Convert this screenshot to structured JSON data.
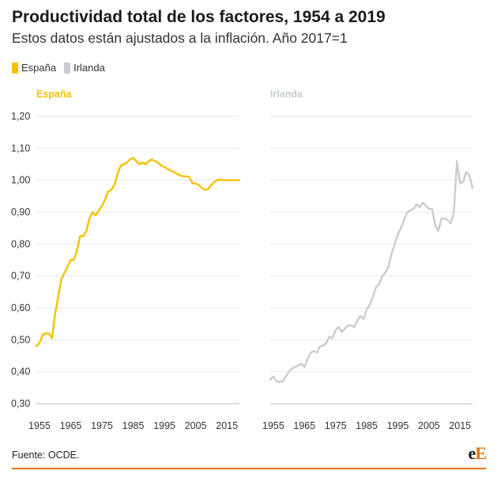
{
  "header": {
    "title": "Productividad total de los factores, 1954 a 2019",
    "subtitle": "Estos datos están ajustados a la inflación. Año 2017=1"
  },
  "legend": [
    {
      "label": "España",
      "color": "#f5c100"
    },
    {
      "label": "Irlanda",
      "color": "#c8ccd1"
    }
  ],
  "footer": {
    "source": "Fuente: OCDE.",
    "logo_part1": "e",
    "logo_part2": "E"
  },
  "chart_data": {
    "type": "line",
    "title": "Productividad total de los factores, 1954 a 2019",
    "ylabel": "",
    "xlabel": "",
    "ylim": [
      0.3,
      1.2
    ],
    "xlim": [
      1954,
      2019
    ],
    "y_ticks": [
      "0,30",
      "0,40",
      "0,50",
      "0,60",
      "0,70",
      "0,80",
      "0,90",
      "1,00",
      "1,10",
      "1,20"
    ],
    "y_tick_values": [
      0.3,
      0.4,
      0.5,
      0.6,
      0.7,
      0.8,
      0.9,
      1.0,
      1.1,
      1.2
    ],
    "x_ticks": [
      1955,
      1965,
      1975,
      1985,
      1995,
      2005,
      2015
    ],
    "panels": [
      {
        "name": "España",
        "color": "#f5c100",
        "x": [
          1954,
          1955,
          1956,
          1957,
          1958,
          1959,
          1960,
          1961,
          1962,
          1963,
          1964,
          1965,
          1966,
          1967,
          1968,
          1969,
          1970,
          1971,
          1972,
          1973,
          1974,
          1975,
          1976,
          1977,
          1978,
          1979,
          1980,
          1981,
          1982,
          1983,
          1984,
          1985,
          1986,
          1987,
          1988,
          1989,
          1990,
          1991,
          1992,
          1993,
          1994,
          1995,
          1996,
          1997,
          1998,
          1999,
          2000,
          2001,
          2002,
          2003,
          2004,
          2005,
          2006,
          2007,
          2008,
          2009,
          2010,
          2011,
          2012,
          2013,
          2014,
          2015,
          2016,
          2017,
          2018,
          2019
        ],
        "values": [
          0.48,
          0.49,
          0.515,
          0.52,
          0.52,
          0.505,
          0.58,
          0.635,
          0.69,
          0.71,
          0.73,
          0.75,
          0.75,
          0.78,
          0.825,
          0.825,
          0.84,
          0.88,
          0.9,
          0.89,
          0.905,
          0.92,
          0.94,
          0.965,
          0.97,
          0.985,
          1.02,
          1.045,
          1.05,
          1.055,
          1.065,
          1.07,
          1.06,
          1.05,
          1.055,
          1.05,
          1.06,
          1.065,
          1.06,
          1.055,
          1.045,
          1.042,
          1.035,
          1.03,
          1.025,
          1.02,
          1.015,
          1.012,
          1.012,
          1.01,
          0.99,
          0.99,
          0.985,
          0.975,
          0.97,
          0.972,
          0.985,
          0.995,
          1.0,
          1.002,
          1.0,
          1.0,
          1.0,
          1.0,
          1.0,
          1.0
        ]
      },
      {
        "name": "Irlanda",
        "color": "#c8ccd1",
        "x": [
          1954,
          1955,
          1956,
          1957,
          1958,
          1959,
          1960,
          1961,
          1962,
          1963,
          1964,
          1965,
          1966,
          1967,
          1968,
          1969,
          1970,
          1971,
          1972,
          1973,
          1974,
          1975,
          1976,
          1977,
          1978,
          1979,
          1980,
          1981,
          1982,
          1983,
          1984,
          1985,
          1986,
          1987,
          1988,
          1989,
          1990,
          1991,
          1992,
          1993,
          1994,
          1995,
          1996,
          1997,
          1998,
          1999,
          2000,
          2001,
          2002,
          2003,
          2004,
          2005,
          2006,
          2007,
          2008,
          2009,
          2010,
          2011,
          2012,
          2013,
          2014,
          2015,
          2016,
          2017,
          2018,
          2019
        ],
        "values": [
          0.375,
          0.385,
          0.37,
          0.368,
          0.37,
          0.385,
          0.4,
          0.41,
          0.415,
          0.42,
          0.425,
          0.415,
          0.44,
          0.46,
          0.465,
          0.46,
          0.48,
          0.482,
          0.49,
          0.51,
          0.505,
          0.53,
          0.54,
          0.525,
          0.535,
          0.545,
          0.545,
          0.54,
          0.56,
          0.575,
          0.565,
          0.595,
          0.61,
          0.635,
          0.665,
          0.675,
          0.7,
          0.71,
          0.73,
          0.77,
          0.8,
          0.83,
          0.85,
          0.875,
          0.9,
          0.905,
          0.91,
          0.925,
          0.915,
          0.93,
          0.92,
          0.91,
          0.91,
          0.86,
          0.84,
          0.88,
          0.88,
          0.875,
          0.865,
          0.9,
          1.06,
          0.99,
          0.995,
          1.025,
          1.015,
          0.975
        ]
      }
    ]
  }
}
